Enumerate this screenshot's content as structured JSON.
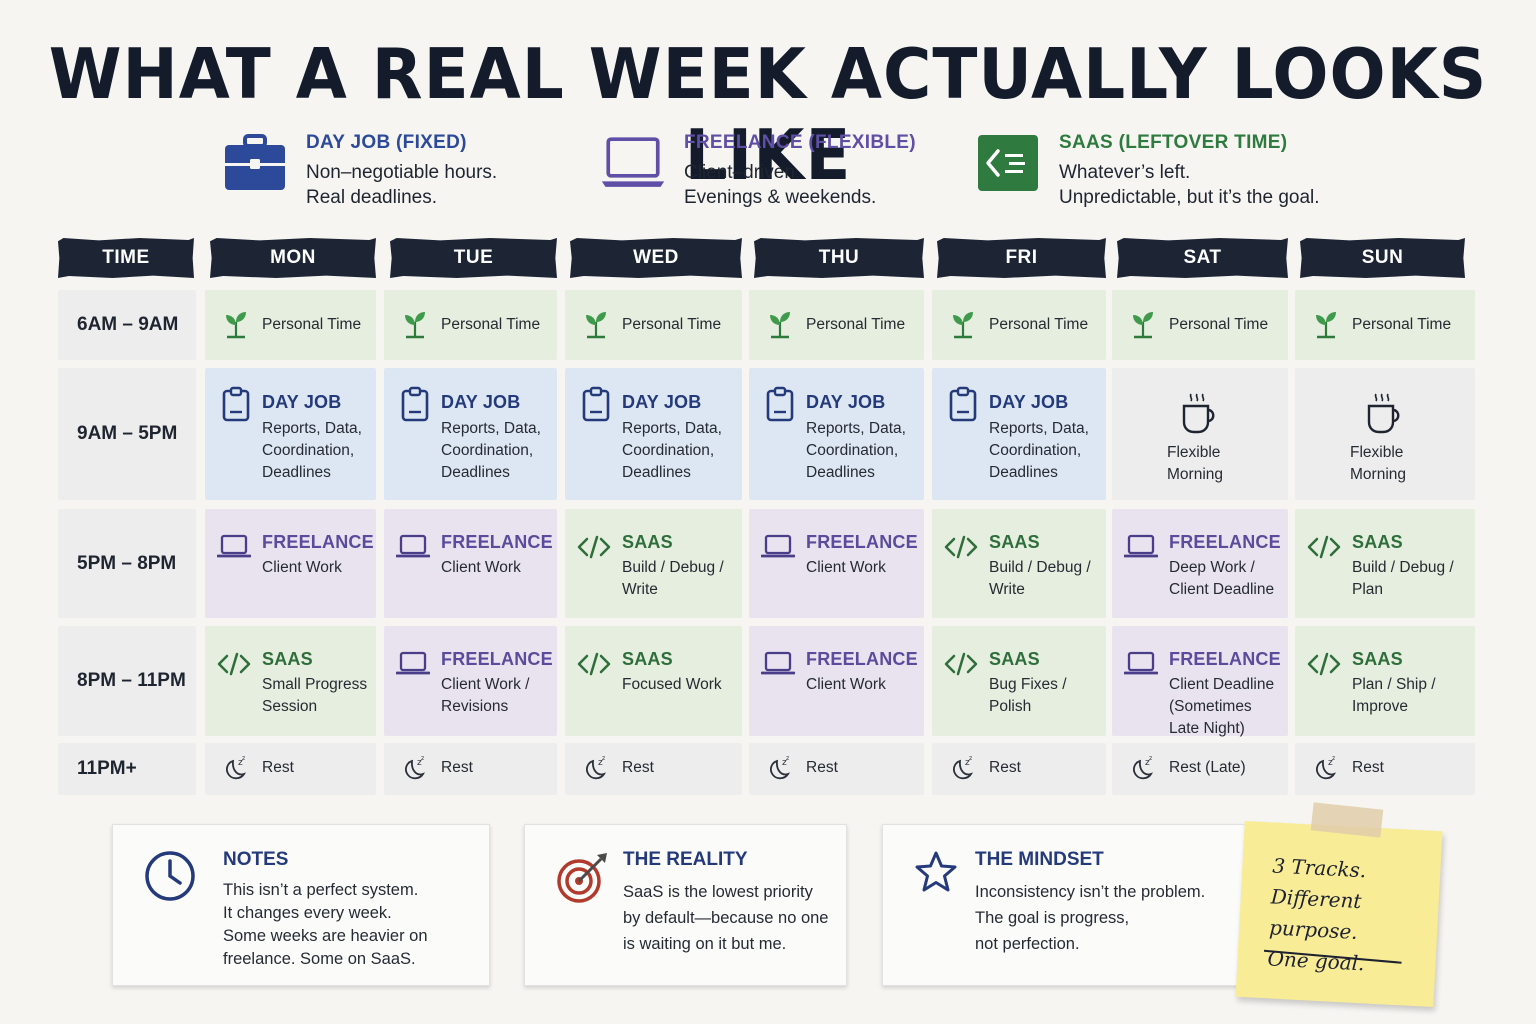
{
  "title": "WHAT A REAL WEEK ACTUALLY LOOKS LIKE",
  "legend": [
    {
      "title": "DAY JOB (FIXED)",
      "line1": "Non–negotiable hours.",
      "line2": "Real deadlines.",
      "icon": "briefcase-icon",
      "color": "#2d4a9a"
    },
    {
      "title": "FREELANCE (FLEXIBLE)",
      "line1": "Client–driven.",
      "line2": "Evenings & weekends.",
      "icon": "laptop-icon",
      "color": "#5f4fa6"
    },
    {
      "title": "SAAS (LEFTOVER TIME)",
      "line1": "Whatever’s left.",
      "line2": "Unpredictable, but it’s the goal.",
      "icon": "code-icon",
      "color": "#2f7a3e"
    }
  ],
  "headers": [
    "TIME",
    "MON",
    "TUE",
    "WED",
    "THU",
    "FRI",
    "SAT",
    "SUN"
  ],
  "time_slots": [
    "6AM – 9AM",
    "9AM – 5PM",
    "5PM – 8PM",
    "8PM – 11PM",
    "11PM+"
  ],
  "schedule": [
    [
      {
        "type": "personal",
        "lines": [
          "Personal Time"
        ]
      },
      {
        "type": "personal",
        "lines": [
          "Personal Time"
        ]
      },
      {
        "type": "personal",
        "lines": [
          "Personal Time"
        ]
      },
      {
        "type": "personal",
        "lines": [
          "Personal Time"
        ]
      },
      {
        "type": "personal",
        "lines": [
          "Personal Time"
        ]
      },
      {
        "type": "personal",
        "lines": [
          "Personal Time"
        ]
      },
      {
        "type": "personal",
        "lines": [
          "Personal Time"
        ]
      }
    ],
    [
      {
        "type": "dayjob",
        "title": "DAY JOB",
        "lines": [
          "Reports, Data,",
          "Coordination,",
          "Deadlines"
        ]
      },
      {
        "type": "dayjob",
        "title": "DAY JOB",
        "lines": [
          "Reports, Data,",
          "Coordination,",
          "Deadlines"
        ]
      },
      {
        "type": "dayjob",
        "title": "DAY JOB",
        "lines": [
          "Reports, Data,",
          "Coordination,",
          "Deadlines"
        ]
      },
      {
        "type": "dayjob",
        "title": "DAY JOB",
        "lines": [
          "Reports, Data,",
          "Coordination,",
          "Deadlines"
        ]
      },
      {
        "type": "dayjob",
        "title": "DAY JOB",
        "lines": [
          "Reports, Data,",
          "Coordination,",
          "Deadlines"
        ]
      },
      {
        "type": "flex",
        "lines": [
          "Flexible",
          "Morning"
        ]
      },
      {
        "type": "flex",
        "lines": [
          "Flexible",
          "Morning"
        ]
      }
    ],
    [
      {
        "type": "freelance",
        "title": "FREELANCE",
        "lines": [
          "Client Work"
        ]
      },
      {
        "type": "freelance",
        "title": "FREELANCE",
        "lines": [
          "Client Work"
        ]
      },
      {
        "type": "saas",
        "title": "SAAS",
        "lines": [
          "Build / Debug /",
          "Write"
        ]
      },
      {
        "type": "freelance",
        "title": "FREELANCE",
        "lines": [
          "Client Work"
        ]
      },
      {
        "type": "saas",
        "title": "SAAS",
        "lines": [
          "Build / Debug /",
          "Write"
        ]
      },
      {
        "type": "freelance",
        "title": "FREELANCE",
        "lines": [
          "Deep Work /",
          "Client Deadline"
        ]
      },
      {
        "type": "saas",
        "title": "SAAS",
        "lines": [
          "Build / Debug /",
          "Plan"
        ]
      }
    ],
    [
      {
        "type": "saas",
        "title": "SAAS",
        "lines": [
          "Small Progress",
          "Session"
        ]
      },
      {
        "type": "freelance",
        "title": "FREELANCE",
        "lines": [
          "Client Work /",
          "Revisions"
        ]
      },
      {
        "type": "saas",
        "title": "SAAS",
        "lines": [
          "Focused Work"
        ]
      },
      {
        "type": "freelance",
        "title": "FREELANCE",
        "lines": [
          "Client Work"
        ]
      },
      {
        "type": "saas",
        "title": "SAAS",
        "lines": [
          "Bug Fixes /",
          "Polish"
        ]
      },
      {
        "type": "freelance",
        "title": "FREELANCE",
        "lines": [
          "Client Deadline",
          "(Sometimes",
          "Late Night)"
        ]
      },
      {
        "type": "saas",
        "title": "SAAS",
        "lines": [
          "Plan / Ship /",
          "Improve"
        ]
      }
    ],
    [
      {
        "type": "rest",
        "lines": [
          "Rest"
        ]
      },
      {
        "type": "rest",
        "lines": [
          "Rest"
        ]
      },
      {
        "type": "rest",
        "lines": [
          "Rest"
        ]
      },
      {
        "type": "rest",
        "lines": [
          "Rest"
        ]
      },
      {
        "type": "rest",
        "lines": [
          "Rest"
        ]
      },
      {
        "type": "rest",
        "lines": [
          "Rest (Late)"
        ]
      },
      {
        "type": "rest",
        "lines": [
          "Rest"
        ]
      }
    ]
  ],
  "notes": [
    {
      "title": "NOTES",
      "icon": "clock-icon",
      "color": "#243a7a",
      "lines": [
        "This isn’t a perfect system.",
        "It changes every week.",
        "Some weeks are heavier on",
        "freelance. Some on SaaS."
      ]
    },
    {
      "title": "THE REALITY",
      "icon": "target-icon",
      "color": "#243a7a",
      "lines": [
        "SaaS is the lowest priority",
        "by default—because no one",
        "is waiting on it but me."
      ]
    },
    {
      "title": "THE MINDSET",
      "icon": "star-icon",
      "color": "#243a7a",
      "lines": [
        "Inconsistency isn’t the problem.",
        "The goal is progress,",
        "not perfection."
      ]
    }
  ],
  "sticky": {
    "lines": [
      "3 Tracks.",
      "Different purpose.",
      "One goal."
    ]
  }
}
